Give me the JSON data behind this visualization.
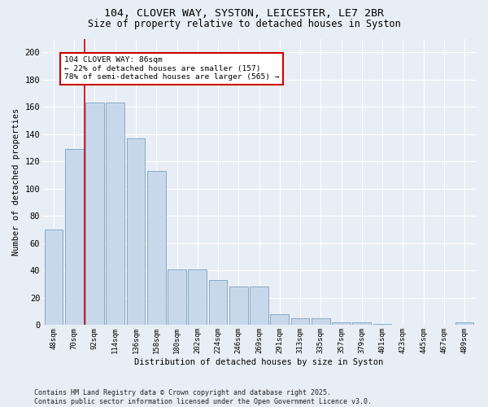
{
  "title1": "104, CLOVER WAY, SYSTON, LEICESTER, LE7 2BR",
  "title2": "Size of property relative to detached houses in Syston",
  "xlabel": "Distribution of detached houses by size in Syston",
  "ylabel": "Number of detached properties",
  "categories": [
    "48sqm",
    "70sqm",
    "92sqm",
    "114sqm",
    "136sqm",
    "158sqm",
    "180sqm",
    "202sqm",
    "224sqm",
    "246sqm",
    "269sqm",
    "291sqm",
    "313sqm",
    "335sqm",
    "357sqm",
    "379sqm",
    "401sqm",
    "423sqm",
    "445sqm",
    "467sqm",
    "489sqm"
  ],
  "values": [
    70,
    129,
    163,
    163,
    137,
    113,
    41,
    41,
    33,
    28,
    28,
    8,
    5,
    5,
    2,
    2,
    1,
    0,
    0,
    0,
    2
  ],
  "bar_color": "#c8d8eb",
  "bar_edge_color": "#7aa0bf",
  "vline_x": 1.5,
  "vline_color": "#cc0000",
  "annotation_title": "104 CLOVER WAY: 86sqm",
  "annotation_line1": "← 22% of detached houses are smaller (157)",
  "annotation_line2": "78% of semi-detached houses are larger (565) →",
  "annotation_box_color": "#cc0000",
  "ylim": [
    0,
    210
  ],
  "yticks": [
    0,
    20,
    40,
    60,
    80,
    100,
    120,
    140,
    160,
    180,
    200
  ],
  "footer": "Contains HM Land Registry data © Crown copyright and database right 2025.\nContains public sector information licensed under the Open Government Licence v3.0.",
  "bg_color": "#e8eef5",
  "plot_bg_color": "#e8eef5",
  "figwidth": 6.0,
  "figheight": 5.0,
  "dpi": 100
}
